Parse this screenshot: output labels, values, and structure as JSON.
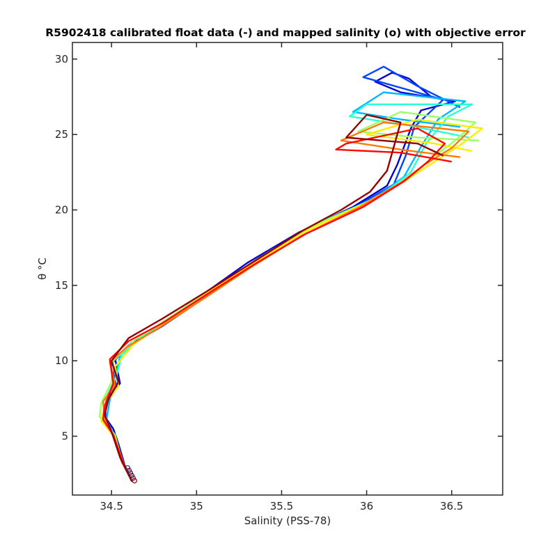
{
  "chart_data": {
    "type": "line",
    "title": "R5902418 calibrated float data (-) and mapped salinity (o) with objective error",
    "xlabel": "Salinity (PSS-78)",
    "ylabel": "θ °C",
    "xlim": [
      34.27,
      36.8
    ],
    "ylim": [
      1.1,
      31.1
    ],
    "xticks": [
      "34.5",
      "35",
      "35.5",
      "36",
      "36.5"
    ],
    "xtick_values": [
      34.5,
      35,
      35.5,
      36,
      36.5
    ],
    "yticks": [
      "5",
      "10",
      "15",
      "20",
      "25",
      "30"
    ],
    "ytick_values": [
      5,
      10,
      15,
      20,
      25,
      30
    ],
    "grid": false,
    "colormap": "jet",
    "series": [
      {
        "values": [
          [
            34.62,
            2.0
          ],
          [
            34.58,
            3.0
          ],
          [
            34.54,
            4.5
          ],
          [
            34.51,
            5.5
          ],
          [
            34.46,
            6.3
          ],
          [
            34.47,
            7.5
          ],
          [
            34.55,
            8.5
          ],
          [
            34.52,
            10.2
          ],
          [
            34.62,
            11.2
          ],
          [
            34.82,
            12.6
          ],
          [
            35.05,
            14.5
          ],
          [
            35.3,
            16.5
          ],
          [
            35.6,
            18.5
          ],
          [
            35.92,
            20.2
          ],
          [
            36.12,
            21.6
          ],
          [
            36.18,
            23.0
          ],
          [
            36.26,
            25.4
          ],
          [
            36.32,
            26.6
          ],
          [
            36.52,
            27.2
          ],
          [
            36.2,
            27.8
          ],
          [
            36.05,
            28.5
          ],
          [
            36.15,
            29.1
          ],
          [
            36.25,
            28.7
          ],
          [
            36.38,
            27.5
          ]
        ]
      },
      {
        "values": [
          [
            34.62,
            2.0
          ],
          [
            34.56,
            3.5
          ],
          [
            34.52,
            5.0
          ],
          [
            34.47,
            6.0
          ],
          [
            34.46,
            7.0
          ],
          [
            34.53,
            8.2
          ],
          [
            34.5,
            9.8
          ],
          [
            34.6,
            11.0
          ],
          [
            34.8,
            12.3
          ],
          [
            35.05,
            14.2
          ],
          [
            35.32,
            16.4
          ],
          [
            35.62,
            18.5
          ],
          [
            35.95,
            20.3
          ],
          [
            36.16,
            21.7
          ],
          [
            36.23,
            23.6
          ],
          [
            36.28,
            25.5
          ],
          [
            36.45,
            27.3
          ],
          [
            35.98,
            28.8
          ],
          [
            36.1,
            29.5
          ],
          [
            36.3,
            28.2
          ],
          [
            36.55,
            26.8
          ]
        ]
      },
      {
        "values": [
          [
            34.62,
            2.0
          ],
          [
            34.55,
            3.8
          ],
          [
            34.51,
            5.2
          ],
          [
            34.47,
            6.1
          ],
          [
            34.49,
            7.4
          ],
          [
            34.52,
            8.8
          ],
          [
            34.55,
            10.3
          ],
          [
            34.68,
            11.6
          ],
          [
            34.9,
            13.2
          ],
          [
            35.15,
            15.2
          ],
          [
            35.42,
            17.2
          ],
          [
            35.72,
            19.1
          ],
          [
            36.05,
            20.8
          ],
          [
            36.22,
            22.2
          ],
          [
            36.32,
            24.2
          ],
          [
            36.42,
            26.0
          ],
          [
            36.58,
            27.2
          ],
          [
            36.1,
            27.8
          ],
          [
            35.92,
            26.5
          ],
          [
            36.2,
            26.0
          ],
          [
            36.55,
            25.5
          ]
        ]
      },
      {
        "values": [
          [
            34.62,
            2.0
          ],
          [
            34.55,
            3.6
          ],
          [
            34.5,
            5.4
          ],
          [
            34.45,
            6.2
          ],
          [
            34.47,
            7.6
          ],
          [
            34.53,
            9.0
          ],
          [
            34.56,
            10.4
          ],
          [
            34.7,
            11.8
          ],
          [
            34.92,
            13.4
          ],
          [
            35.18,
            15.4
          ],
          [
            35.45,
            17.4
          ],
          [
            35.75,
            19.3
          ],
          [
            36.08,
            20.9
          ],
          [
            36.26,
            22.5
          ],
          [
            36.35,
            24.4
          ],
          [
            36.48,
            26.2
          ],
          [
            36.62,
            27.0
          ],
          [
            36.0,
            27.0
          ],
          [
            35.9,
            26.2
          ],
          [
            36.25,
            25.6
          ],
          [
            36.6,
            24.8
          ]
        ]
      },
      {
        "values": [
          [
            34.62,
            2.0
          ],
          [
            34.56,
            3.4
          ],
          [
            34.52,
            5.1
          ],
          [
            34.43,
            6.3
          ],
          [
            34.44,
            7.2
          ],
          [
            34.5,
            8.6
          ],
          [
            34.51,
            10.0
          ],
          [
            34.64,
            11.4
          ],
          [
            34.86,
            13.0
          ],
          [
            35.12,
            15.0
          ],
          [
            35.4,
            17.0
          ],
          [
            35.7,
            19.0
          ],
          [
            36.02,
            20.6
          ],
          [
            36.24,
            22.0
          ],
          [
            36.38,
            23.4
          ],
          [
            36.52,
            24.6
          ],
          [
            36.64,
            25.8
          ],
          [
            36.2,
            26.5
          ],
          [
            35.95,
            25.2
          ],
          [
            36.3,
            24.8
          ],
          [
            36.66,
            24.6
          ]
        ]
      },
      {
        "values": [
          [
            34.62,
            2.0
          ],
          [
            34.57,
            3.2
          ],
          [
            34.52,
            4.9
          ],
          [
            34.44,
            6.0
          ],
          [
            34.46,
            7.1
          ],
          [
            34.54,
            8.3
          ],
          [
            34.52,
            9.6
          ],
          [
            34.63,
            11.1
          ],
          [
            34.84,
            12.7
          ],
          [
            35.1,
            14.8
          ],
          [
            35.38,
            16.8
          ],
          [
            35.68,
            18.8
          ],
          [
            36.0,
            20.5
          ],
          [
            36.22,
            21.9
          ],
          [
            36.4,
            23.2
          ],
          [
            36.55,
            24.3
          ],
          [
            36.68,
            25.4
          ],
          [
            36.3,
            26.0
          ],
          [
            36.0,
            25.0
          ],
          [
            36.4,
            24.4
          ],
          [
            36.62,
            23.9
          ]
        ]
      },
      {
        "values": [
          [
            34.62,
            2.0
          ],
          [
            34.56,
            3.3
          ],
          [
            34.51,
            5.0
          ],
          [
            34.46,
            6.2
          ],
          [
            34.45,
            7.3
          ],
          [
            34.52,
            8.4
          ],
          [
            34.49,
            9.9
          ],
          [
            34.59,
            10.9
          ],
          [
            34.78,
            12.2
          ],
          [
            35.04,
            14.1
          ],
          [
            35.32,
            16.2
          ],
          [
            35.62,
            18.3
          ],
          [
            35.96,
            20.2
          ],
          [
            36.2,
            21.8
          ],
          [
            36.34,
            23.0
          ],
          [
            36.5,
            24.1
          ],
          [
            36.6,
            25.2
          ],
          [
            36.1,
            25.8
          ],
          [
            35.85,
            24.6
          ],
          [
            36.2,
            24.0
          ],
          [
            36.55,
            23.5
          ]
        ]
      },
      {
        "values": [
          [
            34.62,
            2.0
          ],
          [
            34.56,
            3.5
          ],
          [
            34.51,
            5.1
          ],
          [
            34.45,
            6.1
          ],
          [
            34.46,
            7.0
          ],
          [
            34.51,
            8.5
          ],
          [
            34.49,
            10.1
          ],
          [
            34.6,
            11.3
          ],
          [
            34.8,
            12.5
          ],
          [
            35.06,
            14.4
          ],
          [
            35.34,
            16.4
          ],
          [
            35.64,
            18.4
          ],
          [
            35.98,
            20.2
          ],
          [
            36.22,
            21.9
          ],
          [
            36.36,
            23.2
          ],
          [
            36.46,
            24.4
          ],
          [
            36.3,
            25.4
          ],
          [
            35.88,
            24.4
          ],
          [
            35.82,
            24.0
          ],
          [
            36.2,
            23.8
          ],
          [
            36.5,
            23.2
          ]
        ]
      },
      {
        "values": [
          [
            34.62,
            2.0
          ],
          [
            34.55,
            3.6
          ],
          [
            34.5,
            5.3
          ],
          [
            34.46,
            6.4
          ],
          [
            34.48,
            7.4
          ],
          [
            34.54,
            8.6
          ],
          [
            34.5,
            10.0
          ],
          [
            34.6,
            11.5
          ],
          [
            34.8,
            12.8
          ],
          [
            35.06,
            14.6
          ],
          [
            35.34,
            16.6
          ],
          [
            35.62,
            18.6
          ],
          [
            35.85,
            20.0
          ],
          [
            36.02,
            21.2
          ],
          [
            36.12,
            22.6
          ],
          [
            36.16,
            24.2
          ],
          [
            36.2,
            25.8
          ],
          [
            36.0,
            26.3
          ],
          [
            35.88,
            24.8
          ],
          [
            36.3,
            24.4
          ],
          [
            36.45,
            23.6
          ]
        ]
      }
    ]
  }
}
